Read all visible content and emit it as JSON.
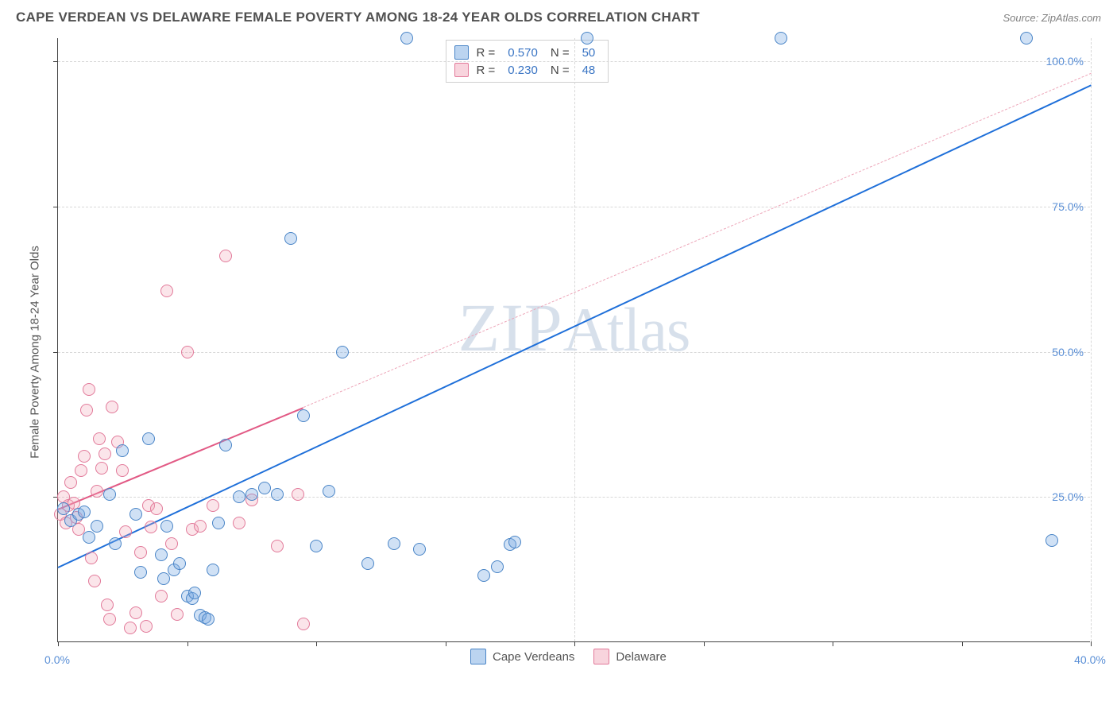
{
  "header": {
    "title": "CAPE VERDEAN VS DELAWARE FEMALE POVERTY AMONG 18-24 YEAR OLDS CORRELATION CHART",
    "source": "Source: ZipAtlas.com"
  },
  "watermark": {
    "part1": "ZIP",
    "part2": "Atlas"
  },
  "chart": {
    "type": "scatter",
    "y_axis_title": "Female Poverty Among 18-24 Year Olds",
    "xlim": [
      0,
      40
    ],
    "ylim": [
      0,
      104
    ],
    "xticks": [
      0,
      20,
      40
    ],
    "xtick_labels": [
      "0.0%",
      "",
      "40.0%"
    ],
    "yticks": [
      25,
      50,
      75,
      100
    ],
    "ytick_labels": [
      "25.0%",
      "50.0%",
      "75.0%",
      "100.0%"
    ],
    "x_minor_ticks": [
      5,
      10,
      15,
      25,
      30,
      35
    ],
    "grid_color": "#d8d8d8",
    "background_color": "#ffffff",
    "colors": {
      "blue_fill": "rgba(120,170,225,0.35)",
      "blue_stroke": "#4a85c7",
      "pink_fill": "rgba(240,160,180,0.28)",
      "pink_stroke": "#e27a9a",
      "blue_line": "#1e6fd9",
      "pink_line": "#e25a85",
      "tick_text": "#5a8fd6"
    },
    "series": {
      "cape_verdeans": {
        "label": "Cape Verdeans",
        "color": "blue",
        "R": 0.57,
        "N": 50,
        "trend": {
          "x1": 0,
          "y1": 13,
          "x2": 40,
          "y2": 96
        },
        "points": [
          [
            0.2,
            23
          ],
          [
            0.5,
            21
          ],
          [
            0.8,
            22
          ],
          [
            1.0,
            22.5
          ],
          [
            1.2,
            18
          ],
          [
            1.5,
            20
          ],
          [
            2.0,
            25.5
          ],
          [
            2.2,
            17
          ],
          [
            2.5,
            33
          ],
          [
            3.0,
            22
          ],
          [
            3.2,
            12
          ],
          [
            3.5,
            35
          ],
          [
            4.0,
            15
          ],
          [
            4.1,
            11
          ],
          [
            4.2,
            20
          ],
          [
            4.5,
            12.5
          ],
          [
            4.7,
            13.5
          ],
          [
            5.0,
            8
          ],
          [
            5.2,
            7.5
          ],
          [
            5.3,
            8.5
          ],
          [
            5.5,
            4.6
          ],
          [
            5.7,
            4.3
          ],
          [
            5.8,
            4.0
          ],
          [
            6.0,
            12.5
          ],
          [
            6.2,
            20.5
          ],
          [
            6.5,
            34
          ],
          [
            7.0,
            25
          ],
          [
            7.5,
            25.5
          ],
          [
            8.0,
            26.5
          ],
          [
            8.5,
            25.5
          ],
          [
            9.0,
            69.5
          ],
          [
            9.5,
            39
          ],
          [
            10.0,
            16.5
          ],
          [
            10.5,
            26
          ],
          [
            11.0,
            50
          ],
          [
            12.0,
            13.5
          ],
          [
            13.0,
            17
          ],
          [
            13.5,
            104
          ],
          [
            14.0,
            16
          ],
          [
            16.5,
            11.5
          ],
          [
            17.0,
            13
          ],
          [
            17.5,
            16.8
          ],
          [
            17.7,
            17.2
          ],
          [
            20.5,
            104
          ],
          [
            28.0,
            104
          ],
          [
            37.5,
            104
          ],
          [
            38.5,
            17.5
          ]
        ]
      },
      "delaware": {
        "label": "Delaware",
        "color": "pink",
        "R": 0.23,
        "N": 48,
        "trend_solid": {
          "x1": 0,
          "y1": 23,
          "x2": 9.5,
          "y2": 40.5
        },
        "trend_dash": {
          "x1": 9.5,
          "y1": 40.5,
          "x2": 40,
          "y2": 98
        },
        "points": [
          [
            0.1,
            22
          ],
          [
            0.2,
            25
          ],
          [
            0.3,
            20.5
          ],
          [
            0.4,
            23.5
          ],
          [
            0.5,
            27.5
          ],
          [
            0.6,
            24
          ],
          [
            0.7,
            21.5
          ],
          [
            0.8,
            19.5
          ],
          [
            0.9,
            29.5
          ],
          [
            1.0,
            32
          ],
          [
            1.1,
            40
          ],
          [
            1.2,
            43.5
          ],
          [
            1.3,
            14.5
          ],
          [
            1.4,
            10.5
          ],
          [
            1.5,
            26
          ],
          [
            1.6,
            35
          ],
          [
            1.7,
            30
          ],
          [
            1.8,
            32.5
          ],
          [
            1.9,
            6.5
          ],
          [
            2.0,
            4
          ],
          [
            2.1,
            40.5
          ],
          [
            2.3,
            34.5
          ],
          [
            2.5,
            29.5
          ],
          [
            2.6,
            19
          ],
          [
            2.8,
            2.5
          ],
          [
            3.0,
            5
          ],
          [
            3.2,
            15.5
          ],
          [
            3.4,
            2.8
          ],
          [
            3.5,
            23.5
          ],
          [
            3.6,
            19.8
          ],
          [
            3.8,
            23
          ],
          [
            4.0,
            8
          ],
          [
            4.2,
            60.5
          ],
          [
            4.4,
            17
          ],
          [
            4.6,
            4.8
          ],
          [
            5.0,
            50
          ],
          [
            5.2,
            19.5
          ],
          [
            5.5,
            20
          ],
          [
            6.0,
            23.5
          ],
          [
            6.5,
            66.5
          ],
          [
            7.0,
            20.5
          ],
          [
            7.5,
            24.5
          ],
          [
            8.5,
            16.5
          ],
          [
            9.3,
            25.5
          ],
          [
            9.5,
            3.2
          ]
        ]
      }
    }
  },
  "legend_top": {
    "r_label": "R =",
    "n_label": "N =",
    "rows": [
      {
        "color": "blue",
        "R": "0.570",
        "N": "50"
      },
      {
        "color": "pink",
        "R": "0.230",
        "N": "48"
      }
    ]
  },
  "legend_bottom": {
    "items": [
      {
        "color": "blue",
        "label": "Cape Verdeans"
      },
      {
        "color": "pink",
        "label": "Delaware"
      }
    ]
  }
}
